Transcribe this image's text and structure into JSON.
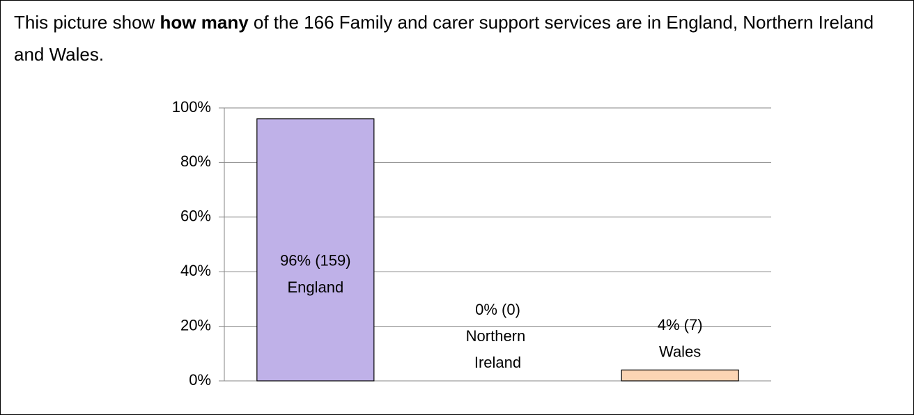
{
  "chart_data": {
    "type": "bar",
    "description": [
      "This picture show ",
      "how many",
      " of the 166 Family and carer support services are in England, Northern Ireland and Wales."
    ],
    "categories": [
      "England",
      "Northern Ireland",
      "Wales"
    ],
    "values": [
      96,
      0,
      4
    ],
    "value_labels": [
      "96% (159)",
      "0% (0)",
      "4% (7)"
    ],
    "colors": [
      "#bfb1e8",
      "#ffffff",
      "#fcd5b4"
    ],
    "ylim": [
      0,
      100
    ],
    "yticks": [
      {
        "value": 0,
        "label": "0%"
      },
      {
        "value": 20,
        "label": "20%"
      },
      {
        "value": 40,
        "label": "40%"
      },
      {
        "value": 60,
        "label": "60%"
      },
      {
        "value": 80,
        "label": "80%"
      },
      {
        "value": 100,
        "label": "100%"
      }
    ],
    "grid": true
  }
}
